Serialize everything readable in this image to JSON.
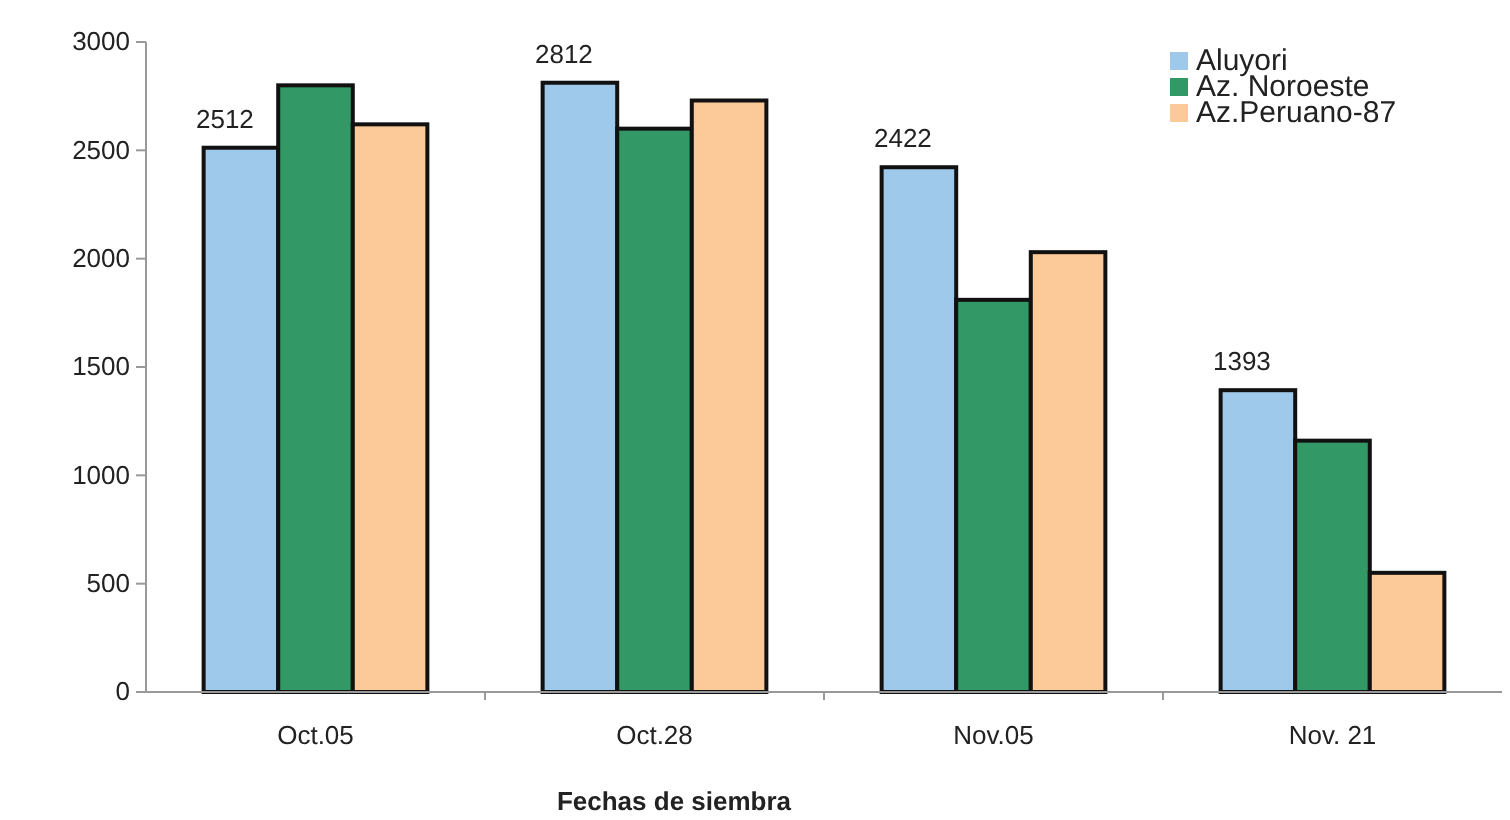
{
  "chart_data": {
    "type": "bar",
    "xlabel": "Fechas de siembra",
    "categories": [
      "Oct.05",
      "Oct.28",
      "Nov.05",
      "Nov. 21"
    ],
    "series": [
      {
        "name": "Aluyori",
        "color": "#9fc9ea",
        "values": [
          2512,
          2812,
          2422,
          1393
        ],
        "value_labels": [
          "2512",
          "2812",
          "2422",
          "1393"
        ]
      },
      {
        "name": "Az. Noroeste",
        "color": "#329866",
        "values": [
          2800,
          2600,
          1810,
          1160
        ]
      },
      {
        "name": "Az.Peruano-87",
        "color": "#fcca99",
        "values": [
          2620,
          2730,
          2030,
          550
        ]
      }
    ],
    "ylim": [
      0,
      3000
    ],
    "yticks": [
      0,
      500,
      1000,
      1500,
      2000,
      2500,
      3000
    ],
    "legend": "top right"
  }
}
